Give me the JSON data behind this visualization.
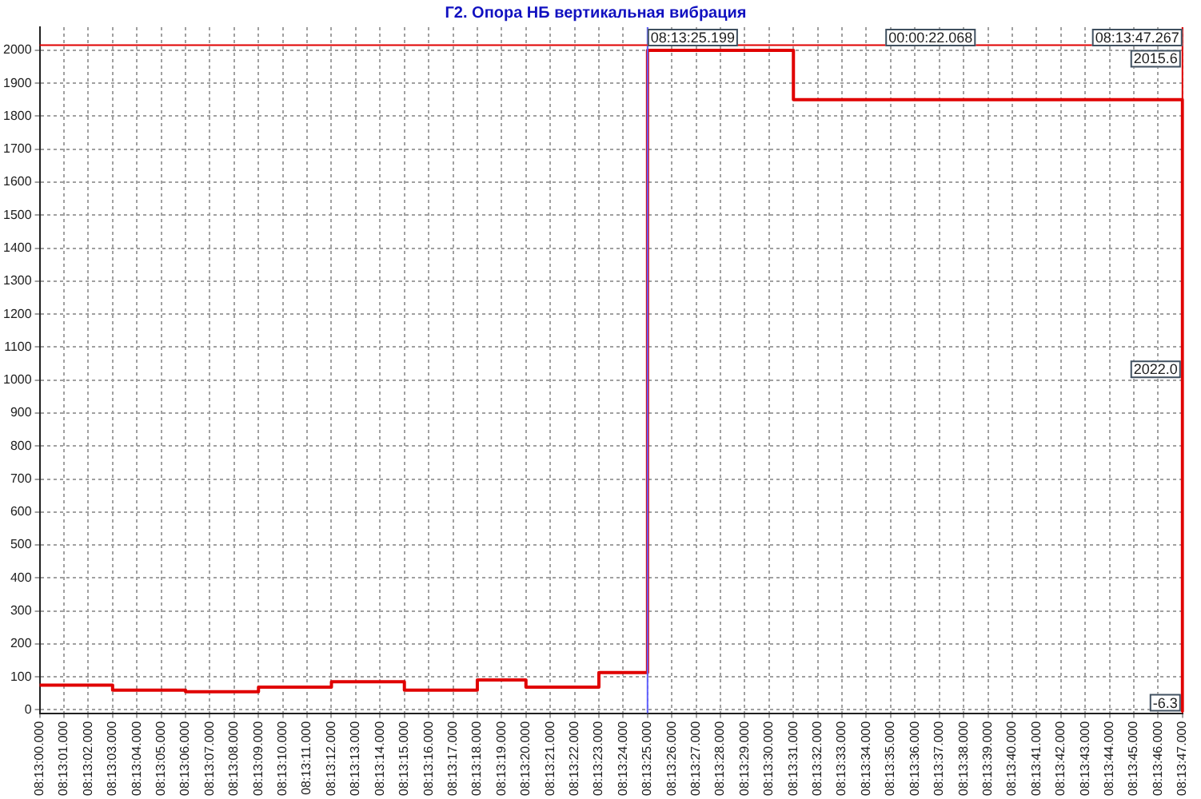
{
  "chart_data": {
    "type": "step",
    "title": "Г2. Опора НБ вертикальная вибрация",
    "categories": [
      "08:13:00.000",
      "08:13:01.000",
      "08:13:02.000",
      "08:13:03.000",
      "08:13:04.000",
      "08:13:05.000",
      "08:13:06.000",
      "08:13:07.000",
      "08:13:08.000",
      "08:13:09.000",
      "08:13:10.000",
      "08:13:11.000",
      "08:13:12.000",
      "08:13:13.000",
      "08:13:14.000",
      "08:13:15.000",
      "08:13:16.000",
      "08:13:17.000",
      "08:13:18.000",
      "08:13:19.000",
      "08:13:20.000",
      "08:13:21.000",
      "08:13:22.000",
      "08:13:23.000",
      "08:13:24.000",
      "08:13:25.000",
      "08:13:26.000",
      "08:13:27.000",
      "08:13:28.000",
      "08:13:29.000",
      "08:13:30.000",
      "08:13:31.000",
      "08:13:32.000",
      "08:13:33.000",
      "08:13:34.000",
      "08:13:35.000",
      "08:13:36.000",
      "08:13:37.000",
      "08:13:38.000",
      "08:13:39.000",
      "08:13:40.000",
      "08:13:41.000",
      "08:13:42.000",
      "08:13:43.000",
      "08:13:44.000",
      "08:13:45.000",
      "08:13:46.000",
      "08:13:47.000"
    ],
    "series": [
      {
        "color": "#e00000",
        "values": [
          75,
          75,
          75,
          60,
          60,
          60,
          55,
          55,
          55,
          69,
          69,
          69,
          85,
          85,
          85,
          60,
          60,
          60,
          91,
          91,
          69,
          69,
          69,
          113,
          113,
          2000,
          2000,
          2000,
          2000,
          2000,
          2000,
          1850,
          1850,
          1850,
          1850,
          1850,
          1850,
          1850,
          1850,
          1850,
          1850,
          1850,
          1850,
          1850,
          1850,
          1850,
          1850,
          -6
        ]
      }
    ],
    "ylim": [
      -10,
      2070
    ],
    "yticks": [
      0,
      100,
      200,
      300,
      400,
      500,
      600,
      700,
      800,
      900,
      1000,
      1100,
      1200,
      1300,
      1400,
      1500,
      1600,
      1700,
      1800,
      1900,
      2000
    ],
    "grid": true,
    "legend": false,
    "marker": "none",
    "line_style": "solid",
    "ref_lines": [
      {
        "axis": "x",
        "value": "08:13:25.000",
        "label": "08:13:25.199",
        "color": "#6060ff"
      },
      {
        "axis": "x",
        "value": "08:13:47.000",
        "label": "08:13:47.267",
        "color": "#e00000"
      },
      {
        "axis": "y",
        "value": 2015.6,
        "label": "2015.6",
        "color": "#e00000"
      }
    ],
    "annotations": [
      "00:00:22.068",
      "2022.0",
      "-6.3"
    ]
  }
}
